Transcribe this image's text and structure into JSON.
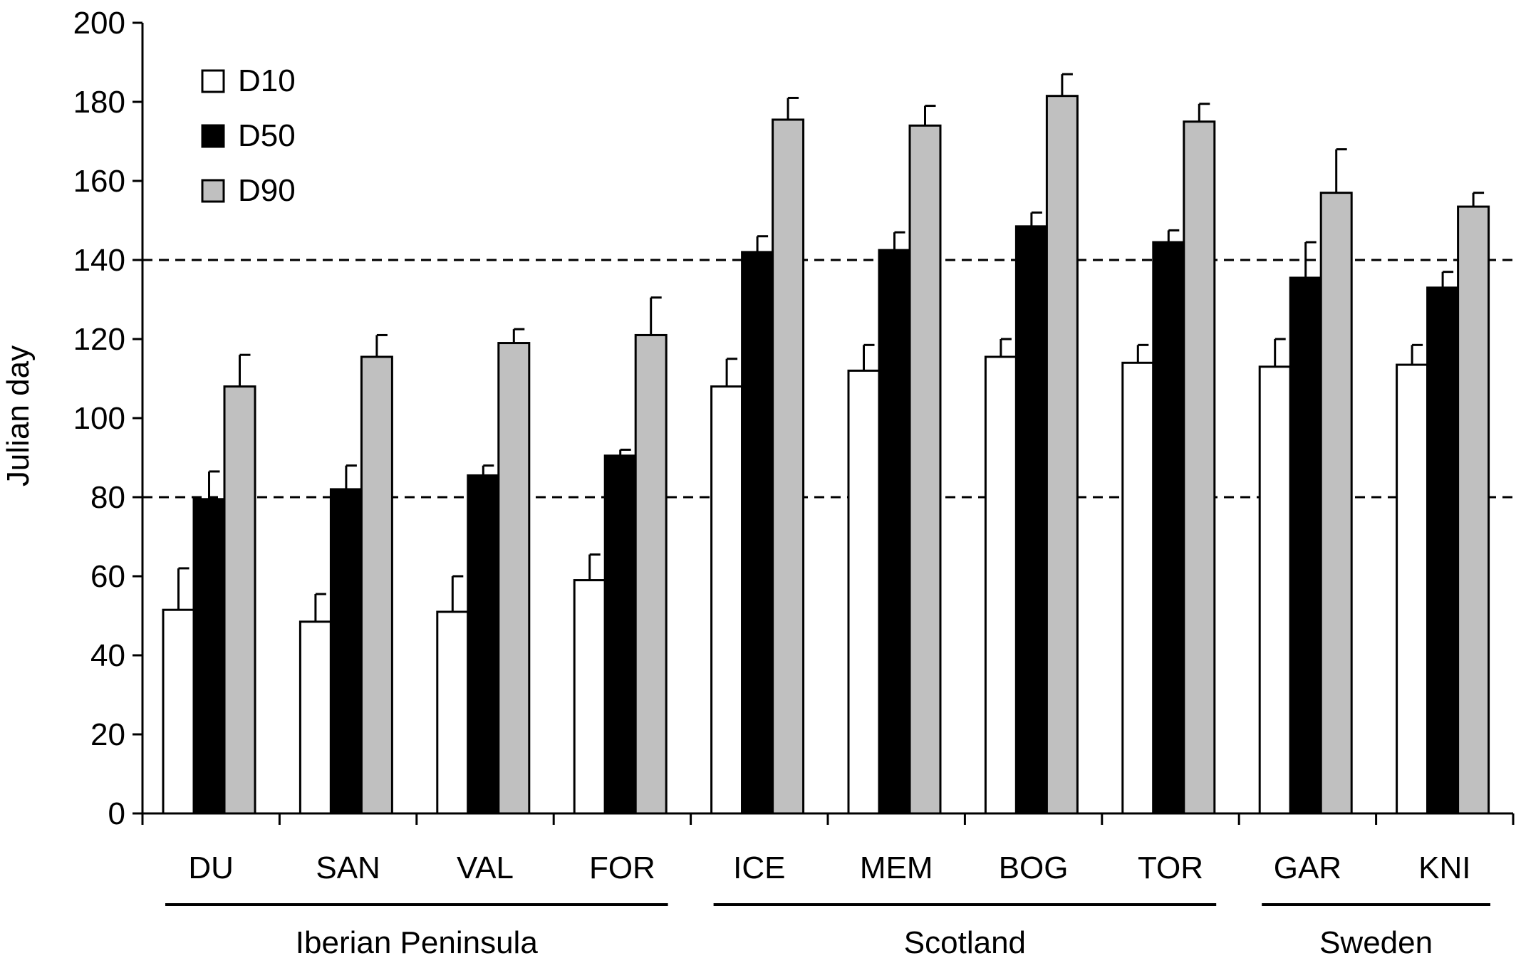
{
  "chart_data": {
    "type": "bar",
    "ylabel": "Julian day",
    "xlabel": "",
    "ylim": [
      0,
      200
    ],
    "yticks": [
      0,
      20,
      40,
      60,
      80,
      100,
      120,
      140,
      160,
      180,
      200
    ],
    "ytick_labels": [
      "0",
      "20",
      "40",
      "60",
      "80",
      "100",
      "120",
      "140",
      "160",
      "180",
      "200"
    ],
    "categories": [
      "DU",
      "SAN",
      "VAL",
      "FOR",
      "ICE",
      "MEM",
      "BOG",
      "TOR",
      "GAR",
      "KNI"
    ],
    "groups": [
      {
        "label": "Iberian Peninsula",
        "categories": [
          "DU",
          "SAN",
          "VAL",
          "FOR"
        ]
      },
      {
        "label": "Scotland",
        "categories": [
          "ICE",
          "MEM",
          "BOG",
          "TOR"
        ]
      },
      {
        "label": "Sweden",
        "categories": [
          "GAR",
          "KNI"
        ]
      }
    ],
    "series": [
      {
        "name": "D10",
        "color": "#ffffff",
        "values": [
          51.5,
          48.5,
          51,
          59,
          108,
          112,
          115.5,
          114,
          113,
          113.5
        ],
        "errors": [
          10.5,
          7,
          9,
          6.5,
          7,
          6.5,
          4.5,
          4.5,
          7,
          5
        ]
      },
      {
        "name": "D50",
        "color": "#000000",
        "values": [
          79.5,
          82,
          85.5,
          90.5,
          142,
          142.5,
          148.5,
          144.5,
          135.5,
          133
        ],
        "errors": [
          7,
          6,
          2.5,
          1.5,
          4,
          4.5,
          3.5,
          3,
          9,
          4
        ]
      },
      {
        "name": "D90",
        "color": "#c0c0c0",
        "values": [
          108,
          115.5,
          119,
          121,
          175.5,
          174,
          181.5,
          175,
          157,
          153.5
        ],
        "errors": [
          8,
          5.5,
          3.5,
          9.5,
          5.5,
          5,
          5.5,
          4.5,
          11,
          3.5
        ]
      }
    ],
    "reference_lines": [
      80,
      140
    ],
    "grid": false,
    "legend": {
      "position": "top-left"
    }
  }
}
